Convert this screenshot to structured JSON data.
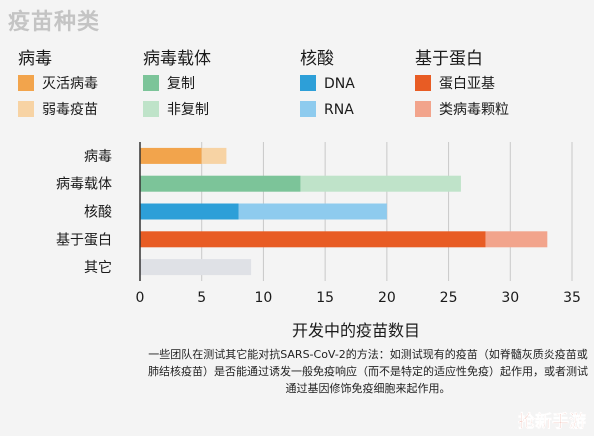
{
  "title": "疫苗种类",
  "legend": [
    {
      "head": "病毒",
      "items": [
        {
          "label": "灭活病毒",
          "color": "#f2a44c"
        },
        {
          "label": "弱毒疫苗",
          "color": "#f7d3a4"
        }
      ]
    },
    {
      "head": "病毒载体",
      "items": [
        {
          "label": "复制",
          "color": "#7cc499"
        },
        {
          "label": "非复制",
          "color": "#bfe3c9"
        }
      ]
    },
    {
      "head": "核酸",
      "items": [
        {
          "label": "DNA",
          "color": "#2d9fd8"
        },
        {
          "label": "RNA",
          "color": "#8ecbee"
        }
      ]
    },
    {
      "head": "基于蛋白",
      "items": [
        {
          "label": "蛋白亚基",
          "color": "#e85c24"
        },
        {
          "label": "类病毒颗粒",
          "color": "#f2a48c"
        }
      ]
    }
  ],
  "chart_data": {
    "type": "bar",
    "orientation": "horizontal",
    "stacked": true,
    "title": "疫苗种类",
    "xlabel": "开发中的疫苗数目",
    "ylabel": "",
    "xlim": [
      0,
      35
    ],
    "xticks": [
      0,
      5,
      10,
      15,
      20,
      25,
      30,
      35
    ],
    "categories": [
      "病毒",
      "病毒载体",
      "核酸",
      "基于蛋白",
      "其它"
    ],
    "segments": [
      [
        {
          "name": "灭活病毒",
          "value": 5,
          "color": "#f2a44c"
        },
        {
          "name": "弱毒疫苗",
          "value": 2,
          "color": "#f7d3a4"
        }
      ],
      [
        {
          "name": "复制",
          "value": 13,
          "color": "#7cc499"
        },
        {
          "name": "非复制",
          "value": 13,
          "color": "#bfe3c9"
        }
      ],
      [
        {
          "name": "DNA",
          "value": 8,
          "color": "#2d9fd8"
        },
        {
          "name": "RNA",
          "value": 12,
          "color": "#8ecbee"
        }
      ],
      [
        {
          "name": "蛋白亚基",
          "value": 28,
          "color": "#e85c24"
        },
        {
          "name": "类病毒颗粒",
          "value": 5,
          "color": "#f2a48c"
        }
      ],
      [
        {
          "name": "其它",
          "value": 9,
          "color": "#dfe1e6"
        }
      ]
    ],
    "grid": true
  },
  "caption": "一些团队在测试其它能对抗SARS-CoV-2的方法：如测试现有的疫苗（如脊髓灰质炎疫苗或肺结核疫苗）是否能通过诱发一般免疫响应（而不是特定的适应性免疫）起作用，或者测试通过基因修饰免疫细胞来起作用。",
  "watermark": "抢新手游"
}
